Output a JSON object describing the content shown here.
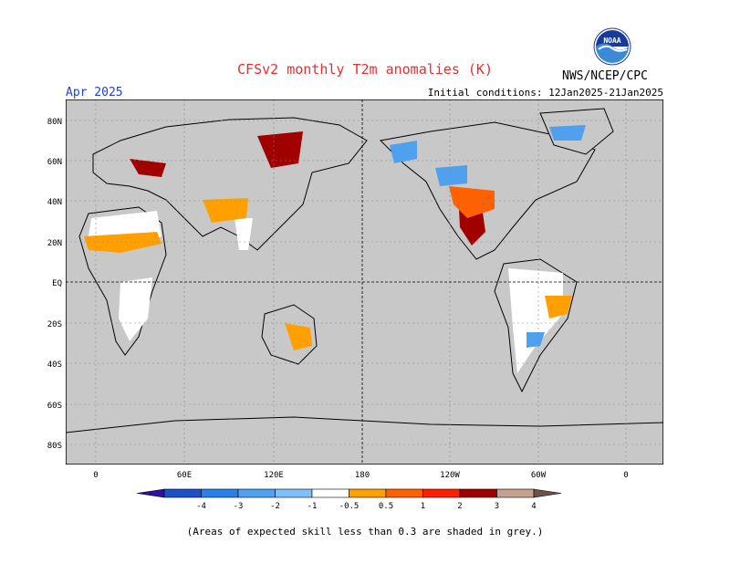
{
  "title": "CFSv2 monthly T2m anomalies (K)",
  "month_label": "Apr 2025",
  "initial_conditions": "Initial conditions: 12Jan2025-21Jan2025",
  "org": "NWS/NCEP/CPC",
  "logo_text": "NOAA",
  "footnote": "(Areas of expected skill less than 0.3 are shaded in grey.)",
  "map": {
    "lat_ticks": [
      "80N",
      "60N",
      "40N",
      "20N",
      "EQ",
      "20S",
      "40S",
      "60S",
      "80S"
    ],
    "lon_ticks": [
      "0",
      "60E",
      "120E",
      "180",
      "120W",
      "60W",
      "0"
    ],
    "background_color": "#c8c8c8",
    "land_no_skill_color": "#ffffff"
  },
  "colorbar": {
    "labels": [
      "-4",
      "-3",
      "-2",
      "-1",
      "-0.5",
      "0.5",
      "1",
      "2",
      "3",
      "4"
    ],
    "colors": [
      "#3010a0",
      "#1c50c8",
      "#2880e8",
      "#50a0f0",
      "#80c0f8",
      "#ffffff",
      "#ffa000",
      "#ff6000",
      "#ff2000",
      "#a00000",
      "#c8a090",
      "#705048"
    ]
  }
}
